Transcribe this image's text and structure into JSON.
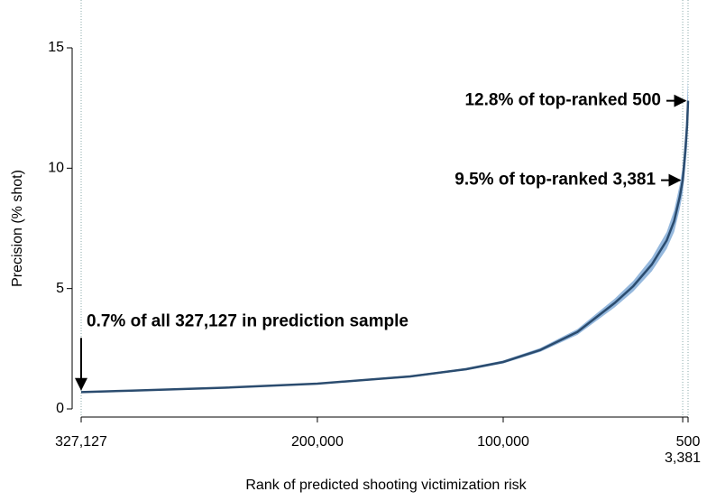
{
  "chart_data": {
    "type": "line",
    "xlabel": "Rank of predicted shooting victimization risk",
    "ylabel": "Precision (% shot)",
    "x": [
      327127,
      300000,
      250000,
      200000,
      150000,
      120000,
      100000,
      80000,
      60000,
      40000,
      30000,
      20000,
      12000,
      8000,
      5000,
      3381,
      2000,
      1000,
      500
    ],
    "series": [
      {
        "color": "#2b4c6f",
        "values": [
          0.7,
          0.76,
          0.88,
          1.05,
          1.35,
          1.65,
          1.95,
          2.45,
          3.2,
          4.4,
          5.1,
          6.0,
          7.0,
          7.8,
          8.8,
          9.5,
          10.7,
          11.8,
          12.8
        ],
        "lower": [
          0.68,
          0.74,
          0.86,
          1.02,
          1.31,
          1.6,
          1.89,
          2.37,
          3.08,
          4.22,
          4.88,
          5.72,
          6.65,
          7.35,
          8.3,
          8.95,
          10.0,
          10.9,
          11.9
        ],
        "upper": [
          0.72,
          0.78,
          0.9,
          1.08,
          1.39,
          1.7,
          2.01,
          2.53,
          3.32,
          4.58,
          5.32,
          6.28,
          7.35,
          8.25,
          9.3,
          10.05,
          11.4,
          12.7,
          13.7
        ],
        "band_color": "#7aa6d4"
      }
    ],
    "xlim": [
      327127,
      500
    ],
    "ylim": [
      0,
      15
    ],
    "xticks": [
      {
        "value": 327127,
        "label": "327,127"
      },
      {
        "value": 200000,
        "label": "200,000"
      },
      {
        "value": 100000,
        "label": "100,000"
      },
      500,
      {
        "value": 3381,
        "label": "3,381"
      }
    ],
    "yticks": [
      0,
      5,
      10,
      15
    ],
    "vlines": [
      327127,
      3381,
      500
    ],
    "annotations": [
      {
        "text": "12.8% of top-ranked 500",
        "x": 500,
        "y": 12.8,
        "arrow": "right"
      },
      {
        "text": "9.5% of top-ranked 3,381",
        "x": 3381,
        "y": 9.5,
        "arrow": "right"
      },
      {
        "text": "0.7% of all 327,127 in prediction sample",
        "x": 327127,
        "y": 0.7,
        "arrow": "down"
      }
    ]
  }
}
